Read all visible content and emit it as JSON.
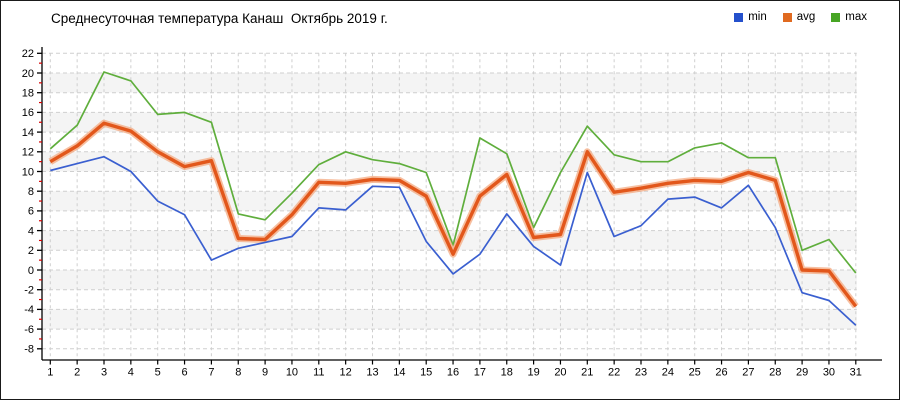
{
  "window": {
    "title_text": "Среднесуточная температура Канаш  Октябрь 2019 г."
  },
  "legend": {
    "items": [
      {
        "label": "min",
        "color": "#2450cc"
      },
      {
        "label": "avg",
        "color": "#e06a20"
      },
      {
        "label": "max",
        "color": "#47a524"
      }
    ]
  },
  "chart_data": {
    "type": "line",
    "title": "Среднесуточная температура Канаш  Октябрь 2019 г.",
    "xlabel": "",
    "ylabel": "",
    "x": [
      1,
      2,
      3,
      4,
      5,
      6,
      7,
      8,
      9,
      10,
      11,
      12,
      13,
      14,
      15,
      16,
      17,
      18,
      19,
      20,
      21,
      22,
      23,
      24,
      25,
      26,
      27,
      28,
      29,
      30,
      31
    ],
    "ylim": [
      -8,
      22
    ],
    "ytick_step": 2,
    "grid": true,
    "legend_position": "top-right",
    "series": [
      {
        "name": "max",
        "color": "#5fae3c",
        "values": [
          12.3,
          14.7,
          20.1,
          19.2,
          15.8,
          16.0,
          15.0,
          5.7,
          5.1,
          7.8,
          10.7,
          12.0,
          11.2,
          10.8,
          9.9,
          2.5,
          13.4,
          11.8,
          4.3,
          9.9,
          14.6,
          11.7,
          11.0,
          11.0,
          12.4,
          12.9,
          11.4,
          11.4,
          2.0,
          3.1,
          -0.3
        ]
      },
      {
        "name": "avg",
        "color": "#e2571b",
        "halo_color": "#f4aa80",
        "values": [
          11.0,
          12.6,
          14.9,
          14.1,
          12.0,
          10.5,
          11.1,
          3.2,
          3.1,
          5.6,
          8.9,
          8.8,
          9.2,
          9.1,
          7.5,
          1.6,
          7.5,
          9.7,
          3.3,
          3.6,
          12.0,
          7.9,
          8.3,
          8.8,
          9.1,
          9.0,
          9.9,
          9.1,
          0.0,
          -0.1,
          -3.7
        ]
      },
      {
        "name": "min",
        "color": "#3a5fd0",
        "values": [
          10.1,
          10.8,
          11.5,
          10.0,
          7.0,
          5.6,
          1.0,
          2.2,
          2.8,
          3.4,
          6.3,
          6.1,
          8.5,
          8.4,
          2.9,
          -0.4,
          1.6,
          5.7,
          2.4,
          0.5,
          9.9,
          3.4,
          4.5,
          7.2,
          7.4,
          6.3,
          8.6,
          4.3,
          -2.3,
          -3.1,
          -5.6
        ]
      }
    ],
    "styling": {
      "grid_color": "#cfcfcf",
      "band_colors": [
        "#ffffff",
        "#f4f4f4"
      ],
      "axis_color": "#000000",
      "minor_tick_color": "#d40000",
      "tick_label_color": "#000000"
    }
  }
}
